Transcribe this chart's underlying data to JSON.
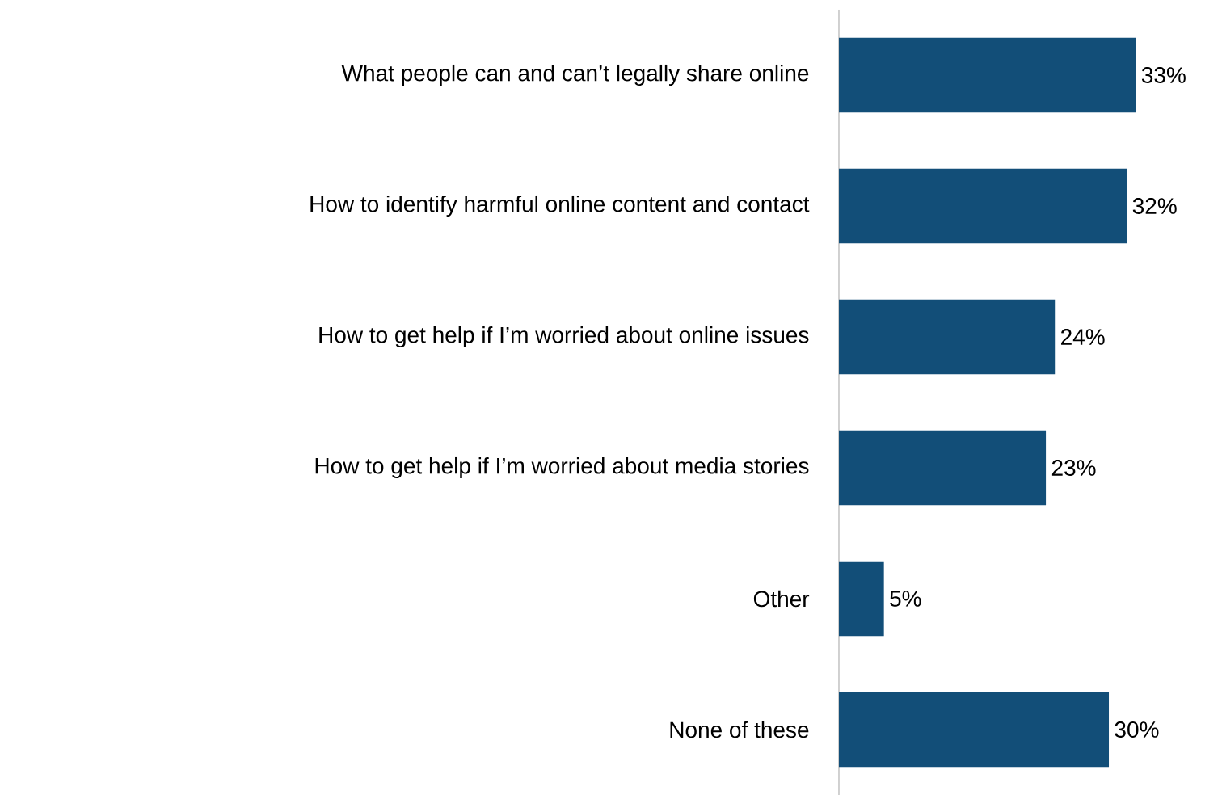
{
  "chart_data": {
    "type": "bar",
    "orientation": "horizontal",
    "categories": [
      "What people can and can’t legally share online",
      "How to identify harmful online content and contact",
      "How to get help if I’m worried about online issues",
      "How to get help if I’m worried about media stories",
      "Other",
      "None of these"
    ],
    "values": [
      33,
      32,
      24,
      23,
      5,
      30
    ],
    "value_labels": [
      "33%",
      "32%",
      "24%",
      "23%",
      "5%",
      "30%"
    ],
    "color": "#124e78",
    "tick_labels": "y"
  }
}
